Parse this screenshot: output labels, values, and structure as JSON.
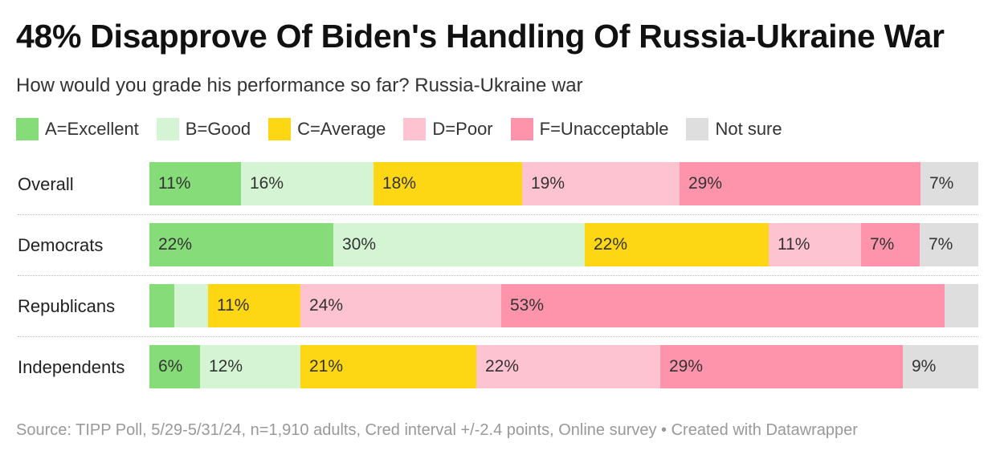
{
  "title": "48% Disapprove Of Biden's Handling Of Russia-Ukraine War",
  "subtitle": "How would you grade his performance so far? Russia-Ukraine war",
  "legend": [
    {
      "label": "A=Excellent",
      "color": "#86dc78"
    },
    {
      "label": "B=Good",
      "color": "#d4f4d4"
    },
    {
      "label": "C=Average",
      "color": "#fdd713"
    },
    {
      "label": "D=Poor",
      "color": "#fec3d1"
    },
    {
      "label": "F=Unacceptable",
      "color": "#fe94ab"
    },
    {
      "label": "Not sure",
      "color": "#dedede"
    }
  ],
  "footer": "Source: TIPP Poll, 5/29-5/31/24, n=1,910 adults, Cred interval +/-2.4 points, Online survey • Created with Datawrapper",
  "chart_data": {
    "type": "bar",
    "orientation": "horizontal",
    "stacked": true,
    "title": "48% Disapprove Of Biden's Handling Of Russia-Ukraine War",
    "subtitle": "How would you grade his performance so far? Russia-Ukraine war",
    "categories": [
      "Overall",
      "Democrats",
      "Republicans",
      "Independents"
    ],
    "unit": "%",
    "series": [
      {
        "name": "A=Excellent",
        "values": [
          11,
          22,
          3,
          6
        ],
        "labels": [
          "11%",
          "22%",
          "",
          "6%"
        ]
      },
      {
        "name": "B=Good",
        "values": [
          16,
          30,
          4,
          12
        ],
        "labels": [
          "16%",
          "30%",
          "",
          "12%"
        ]
      },
      {
        "name": "C=Average",
        "values": [
          18,
          22,
          11,
          21
        ],
        "labels": [
          "18%",
          "22%",
          "11%",
          "21%"
        ]
      },
      {
        "name": "D=Poor",
        "values": [
          19,
          11,
          24,
          22
        ],
        "labels": [
          "19%",
          "11%",
          "24%",
          "22%"
        ]
      },
      {
        "name": "F=Unacceptable",
        "values": [
          29,
          7,
          53,
          29
        ],
        "labels": [
          "29%",
          "7%",
          "53%",
          "29%"
        ]
      },
      {
        "name": "Not sure",
        "values": [
          7,
          7,
          4,
          9
        ],
        "labels": [
          "7%",
          "7%",
          "",
          "9%"
        ]
      }
    ]
  }
}
